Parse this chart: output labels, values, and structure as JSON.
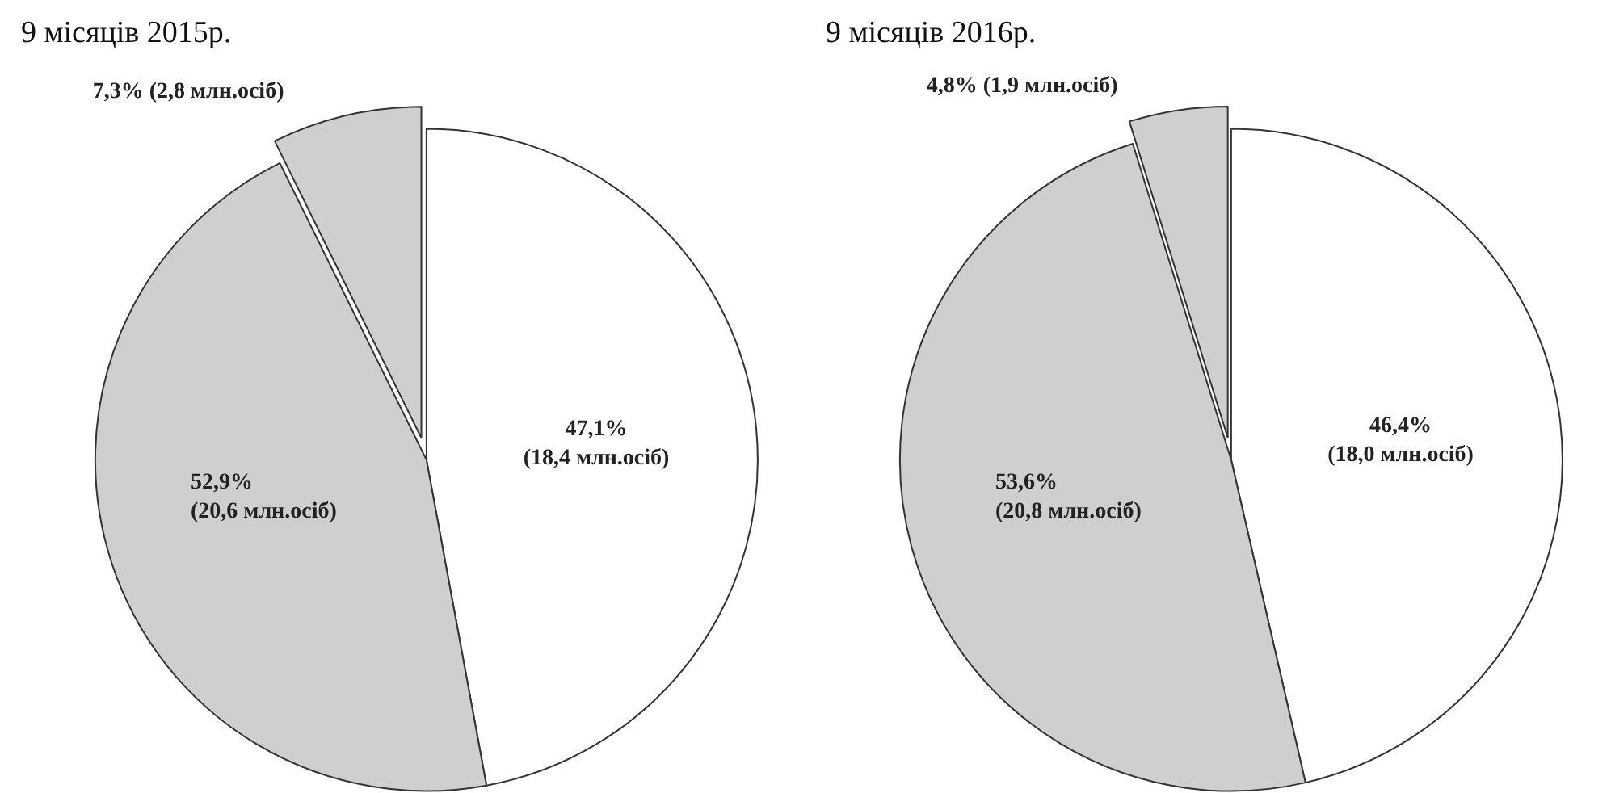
{
  "chart_data": [
    {
      "type": "pie",
      "title": "9 місяців 2015р.",
      "categories": [
        null,
        null,
        null
      ],
      "values": [
        47.1,
        45.6,
        7.3
      ],
      "colors": [
        "#ffffff",
        "#cfcfcf",
        "#cfcfcf"
      ],
      "value_labels": [
        "47,1%\n(18,4 млн.осіб)",
        null,
        "7,3% (2,8 млн.осіб)"
      ],
      "annotations": [
        "52,9%\n(20,6 млн.осіб)"
      ]
    },
    {
      "type": "pie",
      "title": "9 місяців 2016р.",
      "categories": [
        null,
        null,
        null
      ],
      "values": [
        46.4,
        48.8,
        4.8
      ],
      "colors": [
        "#ffffff",
        "#cfcfcf",
        "#cfcfcf"
      ],
      "value_labels": [
        "46,4%\n(18,0 млн.осіб)",
        null,
        "4,8% (1,9 млн.осіб)"
      ],
      "annotations": [
        "53,6%\n(20,8 млн.осіб)"
      ]
    }
  ]
}
